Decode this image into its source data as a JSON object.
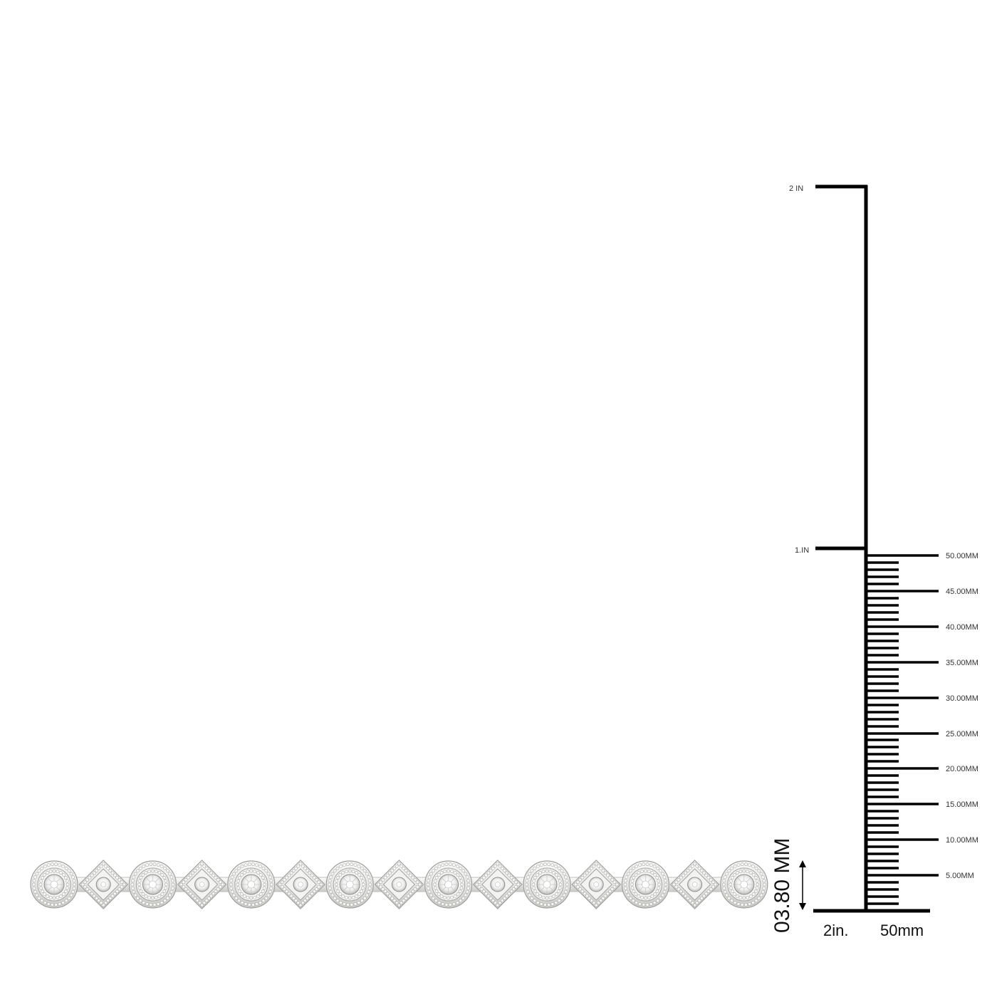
{
  "product": {
    "subject": "milgrain diamond bracelet",
    "metal_color": "#e7e7e5",
    "shapes": [
      "round",
      "diamond",
      "round",
      "diamond",
      "round",
      "diamond",
      "round",
      "diamond",
      "round",
      "diamond",
      "round",
      "diamond",
      "round",
      "diamond",
      "round"
    ]
  },
  "scale": {
    "inch_top": "2 IN",
    "inch_mid": "1.IN",
    "mm_labels": [
      "50.00MM",
      "45.00MM",
      "40.00MM",
      "35.00MM",
      "30.00MM",
      "25.00MM",
      "20.00MM",
      "15.00MM",
      "10.00MM",
      "5.00MM"
    ],
    "bottom_left": "2in.",
    "bottom_right": "50mm",
    "width_label": "03.80 MM",
    "ruler_color": "#000000"
  }
}
